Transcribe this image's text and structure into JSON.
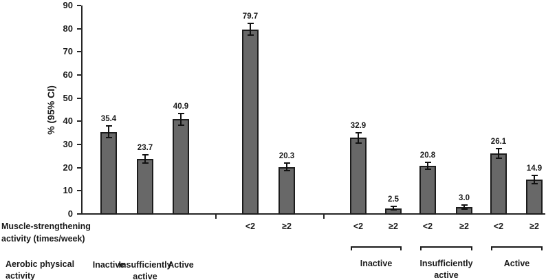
{
  "chart_data": {
    "type": "bar",
    "title": "",
    "ylabel": "% (95% CI)",
    "xlabel": "",
    "ylim": [
      0,
      90
    ],
    "yticks": [
      0,
      10,
      20,
      30,
      40,
      50,
      60,
      70,
      80,
      90
    ],
    "grid": false,
    "legend": null,
    "colors": {
      "bar_fill": "#686868",
      "bar_border": "#1c1c1c",
      "axis": "#262626",
      "text": "#1a1a1a"
    },
    "row_headers": {
      "muscle": [
        "Muscle-strengthening",
        "activity (times/week)"
      ],
      "aerobic": [
        "Aerobic physical",
        "activity"
      ]
    },
    "bars": [
      {
        "value": 35.4,
        "label": "35.4",
        "ci": 2.5,
        "muscle": ""
      },
      {
        "value": 23.7,
        "label": "23.7",
        "ci": 1.8,
        "muscle": ""
      },
      {
        "value": 40.9,
        "label": "40.9",
        "ci": 2.5,
        "muscle": ""
      },
      {
        "value": 79.7,
        "label": "79.7",
        "ci": 2.5,
        "muscle": "<2"
      },
      {
        "value": 20.3,
        "label": "20.3",
        "ci": 1.7,
        "muscle": "≥2"
      },
      {
        "value": 32.9,
        "label": "32.9",
        "ci": 2.2,
        "muscle": "<2"
      },
      {
        "value": 2.5,
        "label": "2.5",
        "ci": 0.8,
        "muscle": "≥2"
      },
      {
        "value": 20.8,
        "label": "20.8",
        "ci": 1.6,
        "muscle": "<2"
      },
      {
        "value": 3.0,
        "label": "3.0",
        "ci": 0.8,
        "muscle": "≥2"
      },
      {
        "value": 26.1,
        "label": "26.1",
        "ci": 2.0,
        "muscle": "<2"
      },
      {
        "value": 14.9,
        "label": "14.9",
        "ci": 1.8,
        "muscle": "≥2"
      }
    ],
    "aerobic_axis": {
      "direct_labels": [
        {
          "bar": 0,
          "lines": [
            "Inactive"
          ]
        },
        {
          "bar": 1,
          "lines": [
            "Insufficiently",
            "active"
          ]
        },
        {
          "bar": 2,
          "lines": [
            "Active"
          ]
        }
      ],
      "bracket_groups": [
        {
          "bars": [
            5,
            6
          ],
          "lines": [
            "Inactive"
          ]
        },
        {
          "bars": [
            7,
            8
          ],
          "lines": [
            "Insufficiently",
            "active"
          ]
        },
        {
          "bars": [
            9,
            10
          ],
          "lines": [
            "Active"
          ]
        }
      ]
    }
  }
}
